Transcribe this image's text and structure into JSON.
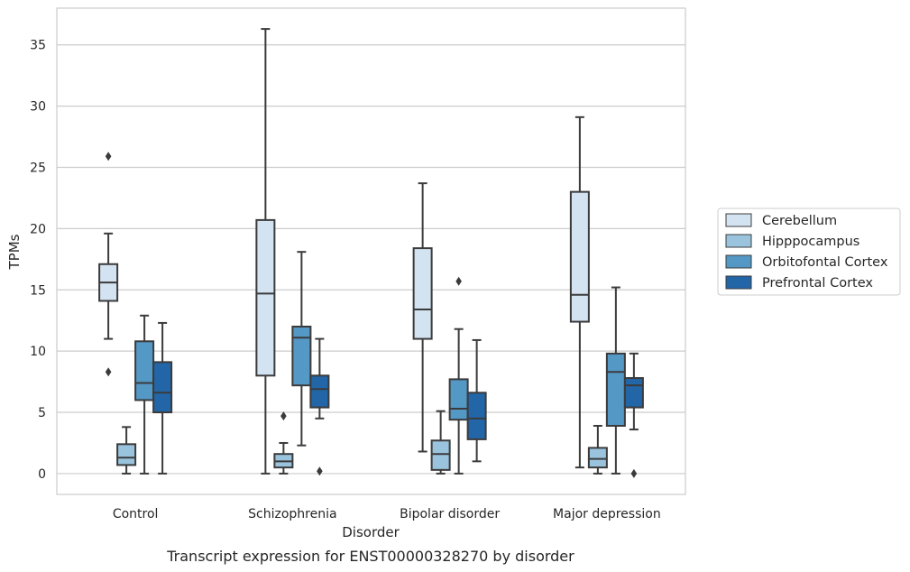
{
  "chart_data": {
    "type": "box",
    "xlabel": "Disorder",
    "ylabel": "TPMs",
    "caption": "Transcript expression for ENST00000328270 by disorder",
    "categories": [
      "Control",
      "Schizophrenia",
      "Bipolar disorder",
      "Major depression"
    ],
    "yticks": [
      0,
      5,
      10,
      15,
      20,
      25,
      30,
      35
    ],
    "ylim": [
      -1.7,
      38
    ],
    "grid": "horizontal",
    "legend_position": "right",
    "series": [
      {
        "name": "Cerebellum",
        "color": "#d4e3f1",
        "boxes": [
          {
            "whislo": 11.0,
            "q1": 14.1,
            "med": 15.6,
            "q3": 17.1,
            "whishi": 19.6,
            "fliers": [
              25.9,
              8.3
            ]
          },
          {
            "whislo": 0.0,
            "q1": 8.0,
            "med": 14.7,
            "q3": 20.7,
            "whishi": 36.3,
            "fliers": []
          },
          {
            "whislo": 1.8,
            "q1": 11.0,
            "med": 13.4,
            "q3": 18.4,
            "whishi": 23.7,
            "fliers": []
          },
          {
            "whislo": 0.5,
            "q1": 12.4,
            "med": 14.6,
            "q3": 23.0,
            "whishi": 29.1,
            "fliers": []
          }
        ]
      },
      {
        "name": "Hipppocampus",
        "color": "#9ac4de",
        "boxes": [
          {
            "whislo": 0.0,
            "q1": 0.7,
            "med": 1.3,
            "q3": 2.4,
            "whishi": 3.8,
            "fliers": []
          },
          {
            "whislo": 0.0,
            "q1": 0.5,
            "med": 1.0,
            "q3": 1.6,
            "whishi": 2.5,
            "fliers": [
              4.7
            ]
          },
          {
            "whislo": 0.0,
            "q1": 0.3,
            "med": 1.6,
            "q3": 2.7,
            "whishi": 5.1,
            "fliers": []
          },
          {
            "whislo": 0.0,
            "q1": 0.5,
            "med": 1.2,
            "q3": 2.1,
            "whishi": 3.9,
            "fliers": []
          }
        ]
      },
      {
        "name": "Orbitofontal Cortex",
        "color": "#5498c6",
        "boxes": [
          {
            "whislo": 0.0,
            "q1": 6.0,
            "med": 7.4,
            "q3": 10.8,
            "whishi": 12.9,
            "fliers": []
          },
          {
            "whislo": 2.3,
            "q1": 7.2,
            "med": 11.1,
            "q3": 12.0,
            "whishi": 18.1,
            "fliers": []
          },
          {
            "whislo": 0.0,
            "q1": 4.4,
            "med": 5.3,
            "q3": 7.7,
            "whishi": 11.8,
            "fliers": [
              15.7
            ]
          },
          {
            "whislo": 0.0,
            "q1": 3.9,
            "med": 8.3,
            "q3": 9.8,
            "whishi": 15.2,
            "fliers": []
          }
        ]
      },
      {
        "name": "Prefrontal Cortex",
        "color": "#2366a8",
        "boxes": [
          {
            "whislo": 0.0,
            "q1": 5.0,
            "med": 6.6,
            "q3": 9.1,
            "whishi": 12.3,
            "fliers": []
          },
          {
            "whislo": 4.5,
            "q1": 5.4,
            "med": 6.9,
            "q3": 8.0,
            "whishi": 11.0,
            "fliers": [
              0.2
            ]
          },
          {
            "whislo": 1.0,
            "q1": 2.8,
            "med": 4.5,
            "q3": 6.6,
            "whishi": 10.9,
            "fliers": []
          },
          {
            "whislo": 3.6,
            "q1": 5.4,
            "med": 7.2,
            "q3": 7.8,
            "whishi": 9.8,
            "fliers": [
              0.0
            ]
          }
        ]
      }
    ]
  }
}
